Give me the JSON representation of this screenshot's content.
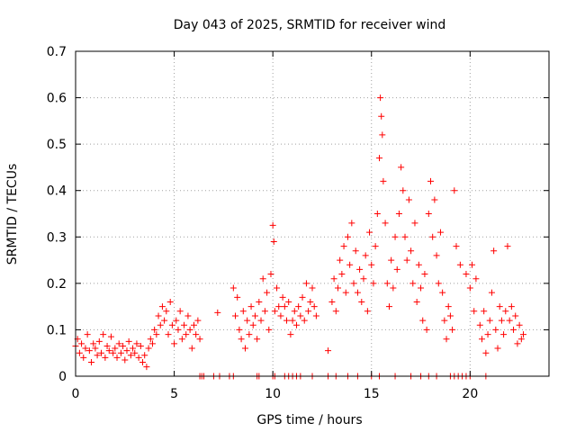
{
  "chart_data": {
    "type": "scatter",
    "title": "Day 043 of 2025, SRMTID for receiver wind",
    "xlabel": "GPS time / hours",
    "ylabel": "SRMTID / TECUs",
    "xlim": [
      0,
      24
    ],
    "ylim": [
      0,
      0.7
    ],
    "xticks": [
      0,
      5,
      10,
      15,
      20
    ],
    "yticks": [
      0,
      0.1,
      0.2,
      0.3,
      0.4,
      0.5,
      0.6,
      0.7
    ],
    "grid": true,
    "marker": "plus",
    "color": "#ff0000",
    "series": [
      {
        "name": "SRMTID",
        "points": [
          [
            0.0,
            0.065
          ],
          [
            0.1,
            0.08
          ],
          [
            0.2,
            0.05
          ],
          [
            0.3,
            0.07
          ],
          [
            0.4,
            0.04
          ],
          [
            0.5,
            0.06
          ],
          [
            0.6,
            0.09
          ],
          [
            0.7,
            0.055
          ],
          [
            0.8,
            0.03
          ],
          [
            0.9,
            0.07
          ],
          [
            1.0,
            0.06
          ],
          [
            1.1,
            0.045
          ],
          [
            1.2,
            0.075
          ],
          [
            1.3,
            0.05
          ],
          [
            1.4,
            0.09
          ],
          [
            1.5,
            0.04
          ],
          [
            1.6,
            0.065
          ],
          [
            1.7,
            0.055
          ],
          [
            1.8,
            0.085
          ],
          [
            1.9,
            0.05
          ],
          [
            2.0,
            0.06
          ],
          [
            2.1,
            0.04
          ],
          [
            2.2,
            0.07
          ],
          [
            2.3,
            0.05
          ],
          [
            2.4,
            0.065
          ],
          [
            2.5,
            0.035
          ],
          [
            2.6,
            0.055
          ],
          [
            2.7,
            0.075
          ],
          [
            2.8,
            0.045
          ],
          [
            2.9,
            0.06
          ],
          [
            3.0,
            0.05
          ],
          [
            3.1,
            0.07
          ],
          [
            3.2,
            0.04
          ],
          [
            3.3,
            0.065
          ],
          [
            3.4,
            0.03
          ],
          [
            3.5,
            0.045
          ],
          [
            3.6,
            0.02
          ],
          [
            3.7,
            0.06
          ],
          [
            3.8,
            0.08
          ],
          [
            3.9,
            0.07
          ],
          [
            4.0,
            0.1
          ],
          [
            4.1,
            0.09
          ],
          [
            4.2,
            0.13
          ],
          [
            4.3,
            0.11
          ],
          [
            4.4,
            0.15
          ],
          [
            4.5,
            0.12
          ],
          [
            4.6,
            0.14
          ],
          [
            4.7,
            0.09
          ],
          [
            4.8,
            0.16
          ],
          [
            4.9,
            0.11
          ],
          [
            5.0,
            0.07
          ],
          [
            5.1,
            0.12
          ],
          [
            5.2,
            0.1
          ],
          [
            5.3,
            0.14
          ],
          [
            5.4,
            0.08
          ],
          [
            5.5,
            0.11
          ],
          [
            5.6,
            0.09
          ],
          [
            5.7,
            0.13
          ],
          [
            5.8,
            0.1
          ],
          [
            5.9,
            0.06
          ],
          [
            6.0,
            0.11
          ],
          [
            6.1,
            0.09
          ],
          [
            6.2,
            0.12
          ],
          [
            6.3,
            0.08
          ],
          [
            7.2,
            0.137
          ],
          [
            8.0,
            0.19
          ],
          [
            8.1,
            0.13
          ],
          [
            8.2,
            0.17
          ],
          [
            8.3,
            0.1
          ],
          [
            8.4,
            0.08
          ],
          [
            8.5,
            0.14
          ],
          [
            8.6,
            0.06
          ],
          [
            8.7,
            0.12
          ],
          [
            8.8,
            0.09
          ],
          [
            8.9,
            0.15
          ],
          [
            9.0,
            0.11
          ],
          [
            9.1,
            0.13
          ],
          [
            9.2,
            0.08
          ],
          [
            9.3,
            0.16
          ],
          [
            9.4,
            0.12
          ],
          [
            9.5,
            0.21
          ],
          [
            9.6,
            0.14
          ],
          [
            9.7,
            0.18
          ],
          [
            9.8,
            0.1
          ],
          [
            9.9,
            0.22
          ],
          [
            10.0,
            0.325
          ],
          [
            10.05,
            0.29
          ],
          [
            10.1,
            0.14
          ],
          [
            10.2,
            0.19
          ],
          [
            10.3,
            0.15
          ],
          [
            10.4,
            0.13
          ],
          [
            10.5,
            0.17
          ],
          [
            10.6,
            0.15
          ],
          [
            10.7,
            0.12
          ],
          [
            10.8,
            0.16
          ],
          [
            10.9,
            0.09
          ],
          [
            11.0,
            0.12
          ],
          [
            11.1,
            0.14
          ],
          [
            11.2,
            0.11
          ],
          [
            11.3,
            0.15
          ],
          [
            11.4,
            0.13
          ],
          [
            11.5,
            0.17
          ],
          [
            11.6,
            0.12
          ],
          [
            11.7,
            0.2
          ],
          [
            11.8,
            0.14
          ],
          [
            11.9,
            0.16
          ],
          [
            12.0,
            0.19
          ],
          [
            12.1,
            0.15
          ],
          [
            12.2,
            0.13
          ],
          [
            12.8,
            0.055
          ],
          [
            13.0,
            0.16
          ],
          [
            13.1,
            0.21
          ],
          [
            13.2,
            0.14
          ],
          [
            13.3,
            0.19
          ],
          [
            13.4,
            0.25
          ],
          [
            13.5,
            0.22
          ],
          [
            13.6,
            0.28
          ],
          [
            13.7,
            0.18
          ],
          [
            13.8,
            0.3
          ],
          [
            13.9,
            0.24
          ],
          [
            14.0,
            0.33
          ],
          [
            14.1,
            0.2
          ],
          [
            14.2,
            0.27
          ],
          [
            14.3,
            0.18
          ],
          [
            14.4,
            0.23
          ],
          [
            14.5,
            0.16
          ],
          [
            14.6,
            0.21
          ],
          [
            14.7,
            0.26
          ],
          [
            14.8,
            0.14
          ],
          [
            14.9,
            0.31
          ],
          [
            15.0,
            0.24
          ],
          [
            15.1,
            0.2
          ],
          [
            15.2,
            0.28
          ],
          [
            15.3,
            0.35
          ],
          [
            15.4,
            0.47
          ],
          [
            15.45,
            0.6
          ],
          [
            15.5,
            0.56
          ],
          [
            15.55,
            0.52
          ],
          [
            15.6,
            0.42
          ],
          [
            15.7,
            0.33
          ],
          [
            15.8,
            0.2
          ],
          [
            15.9,
            0.15
          ],
          [
            16.0,
            0.25
          ],
          [
            16.1,
            0.19
          ],
          [
            16.2,
            0.3
          ],
          [
            16.3,
            0.23
          ],
          [
            16.4,
            0.35
          ],
          [
            16.5,
            0.45
          ],
          [
            16.6,
            0.4
          ],
          [
            16.7,
            0.3
          ],
          [
            16.8,
            0.25
          ],
          [
            16.9,
            0.38
          ],
          [
            17.0,
            0.27
          ],
          [
            17.1,
            0.2
          ],
          [
            17.2,
            0.33
          ],
          [
            17.3,
            0.16
          ],
          [
            17.4,
            0.24
          ],
          [
            17.5,
            0.19
          ],
          [
            17.6,
            0.12
          ],
          [
            17.7,
            0.22
          ],
          [
            17.8,
            0.1
          ],
          [
            17.9,
            0.35
          ],
          [
            18.0,
            0.42
          ],
          [
            18.1,
            0.3
          ],
          [
            18.2,
            0.38
          ],
          [
            18.3,
            0.26
          ],
          [
            18.4,
            0.2
          ],
          [
            18.5,
            0.31
          ],
          [
            18.6,
            0.18
          ],
          [
            18.7,
            0.12
          ],
          [
            18.8,
            0.08
          ],
          [
            18.9,
            0.15
          ],
          [
            19.0,
            0.13
          ],
          [
            19.1,
            0.1
          ],
          [
            19.2,
            0.4
          ],
          [
            19.3,
            0.28
          ],
          [
            19.5,
            0.24
          ],
          [
            19.8,
            0.22
          ],
          [
            20.0,
            0.19
          ],
          [
            20.1,
            0.24
          ],
          [
            20.2,
            0.14
          ],
          [
            20.3,
            0.21
          ],
          [
            20.5,
            0.11
          ],
          [
            20.6,
            0.08
          ],
          [
            20.7,
            0.14
          ],
          [
            20.8,
            0.05
          ],
          [
            20.9,
            0.09
          ],
          [
            21.0,
            0.12
          ],
          [
            21.1,
            0.18
          ],
          [
            21.2,
            0.27
          ],
          [
            21.3,
            0.1
          ],
          [
            21.4,
            0.06
          ],
          [
            21.5,
            0.15
          ],
          [
            21.6,
            0.12
          ],
          [
            21.7,
            0.09
          ],
          [
            21.8,
            0.14
          ],
          [
            21.9,
            0.28
          ],
          [
            22.0,
            0.12
          ],
          [
            22.1,
            0.15
          ],
          [
            22.2,
            0.1
          ],
          [
            22.3,
            0.13
          ],
          [
            22.4,
            0.07
          ],
          [
            22.5,
            0.11
          ],
          [
            22.6,
            0.08
          ],
          [
            22.7,
            0.09
          ]
        ]
      }
    ],
    "baseline_points": [
      [
        6.3,
        0
      ],
      [
        6.4,
        0
      ],
      [
        6.5,
        0
      ],
      [
        7.0,
        0
      ],
      [
        7.3,
        0
      ],
      [
        7.8,
        0
      ],
      [
        8.0,
        0
      ],
      [
        9.2,
        0
      ],
      [
        9.3,
        0
      ],
      [
        10.0,
        0
      ],
      [
        10.1,
        0
      ],
      [
        10.6,
        0
      ],
      [
        10.8,
        0
      ],
      [
        11.0,
        0
      ],
      [
        11.2,
        0
      ],
      [
        11.4,
        0
      ],
      [
        12.0,
        0
      ],
      [
        12.8,
        0
      ],
      [
        13.2,
        0
      ],
      [
        13.8,
        0
      ],
      [
        14.3,
        0
      ],
      [
        15.0,
        0
      ],
      [
        15.4,
        0
      ],
      [
        16.2,
        0
      ],
      [
        17.0,
        0
      ],
      [
        17.5,
        0
      ],
      [
        17.9,
        0
      ],
      [
        18.3,
        0
      ],
      [
        19.0,
        0
      ],
      [
        19.2,
        0
      ],
      [
        19.4,
        0
      ],
      [
        19.6,
        0
      ],
      [
        19.8,
        0
      ],
      [
        20.0,
        0
      ],
      [
        20.8,
        0
      ]
    ]
  }
}
